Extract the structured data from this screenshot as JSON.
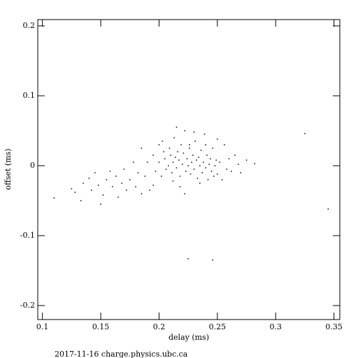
{
  "chart_data": {
    "type": "scatter",
    "x_label": "delay (ms)",
    "y_label": "offset (ms)",
    "footer": "2017-11-16 charge.physics.ubc.ca",
    "xlim": [
      0.096,
      0.355
    ],
    "ylim": [
      -0.22,
      0.209
    ],
    "xticks": [
      0.1,
      0.15,
      0.2,
      0.25,
      0.3,
      0.35
    ],
    "yticks": [
      -0.2,
      -0.1,
      0,
      0.1,
      0.2
    ],
    "color": "#000000",
    "x": [
      0.11,
      0.125,
      0.128,
      0.133,
      0.135,
      0.14,
      0.142,
      0.145,
      0.148,
      0.15,
      0.152,
      0.155,
      0.158,
      0.16,
      0.163,
      0.165,
      0.168,
      0.17,
      0.172,
      0.175,
      0.178,
      0.18,
      0.182,
      0.185,
      0.188,
      0.19,
      0.192,
      0.195,
      0.197,
      0.2,
      0.2,
      0.202,
      0.204,
      0.205,
      0.206,
      0.208,
      0.209,
      0.21,
      0.211,
      0.212,
      0.213,
      0.214,
      0.215,
      0.216,
      0.217,
      0.218,
      0.219,
      0.22,
      0.221,
      0.222,
      0.223,
      0.224,
      0.225,
      0.226,
      0.227,
      0.228,
      0.229,
      0.23,
      0.231,
      0.232,
      0.233,
      0.234,
      0.235,
      0.236,
      0.237,
      0.238,
      0.239,
      0.24,
      0.241,
      0.242,
      0.243,
      0.244,
      0.245,
      0.246,
      0.247,
      0.248,
      0.249,
      0.25,
      0.252,
      0.254,
      0.256,
      0.258,
      0.26,
      0.262,
      0.265,
      0.268,
      0.27,
      0.275,
      0.282,
      0.325,
      0.345,
      0.225,
      0.246,
      0.203,
      0.215,
      0.23,
      0.25,
      0.218,
      0.235,
      0.222,
      0.195,
      0.185,
      0.24,
      0.226,
      0.212
    ],
    "y": [
      -0.046,
      -0.033,
      -0.038,
      -0.05,
      -0.025,
      -0.018,
      -0.035,
      -0.01,
      -0.028,
      -0.055,
      -0.042,
      -0.02,
      -0.008,
      -0.03,
      -0.015,
      -0.045,
      -0.025,
      -0.005,
      -0.035,
      -0.02,
      0.005,
      -0.03,
      -0.01,
      0.025,
      -0.015,
      0.005,
      -0.035,
      0.015,
      -0.008,
      0.03,
      0.005,
      -0.015,
      0.02,
      0.01,
      -0.005,
      0.0,
      0.025,
      0.015,
      -0.01,
      0.005,
      0.04,
      0.012,
      -0.003,
      0.02,
      0.008,
      -0.015,
      0.03,
      0.002,
      0.018,
      0.05,
      -0.008,
      0.01,
      0.0,
      0.025,
      -0.012,
      0.005,
      0.015,
      -0.005,
      0.035,
      0.008,
      -0.018,
      0.012,
      0.0,
      0.022,
      -0.01,
      0.005,
      0.045,
      -0.003,
      0.015,
      -0.02,
      0.002,
      0.01,
      -0.008,
      0.025,
      -0.015,
      0.0,
      0.008,
      -0.012,
      0.005,
      -0.02,
      0.03,
      -0.005,
      0.01,
      -0.008,
      0.015,
      0.002,
      -0.01,
      0.008,
      0.003,
      0.046,
      -0.062,
      -0.133,
      -0.135,
      0.035,
      0.055,
      0.048,
      0.038,
      -0.03,
      -0.025,
      -0.04,
      -0.028,
      -0.04,
      0.03,
      0.03,
      -0.022
    ]
  }
}
